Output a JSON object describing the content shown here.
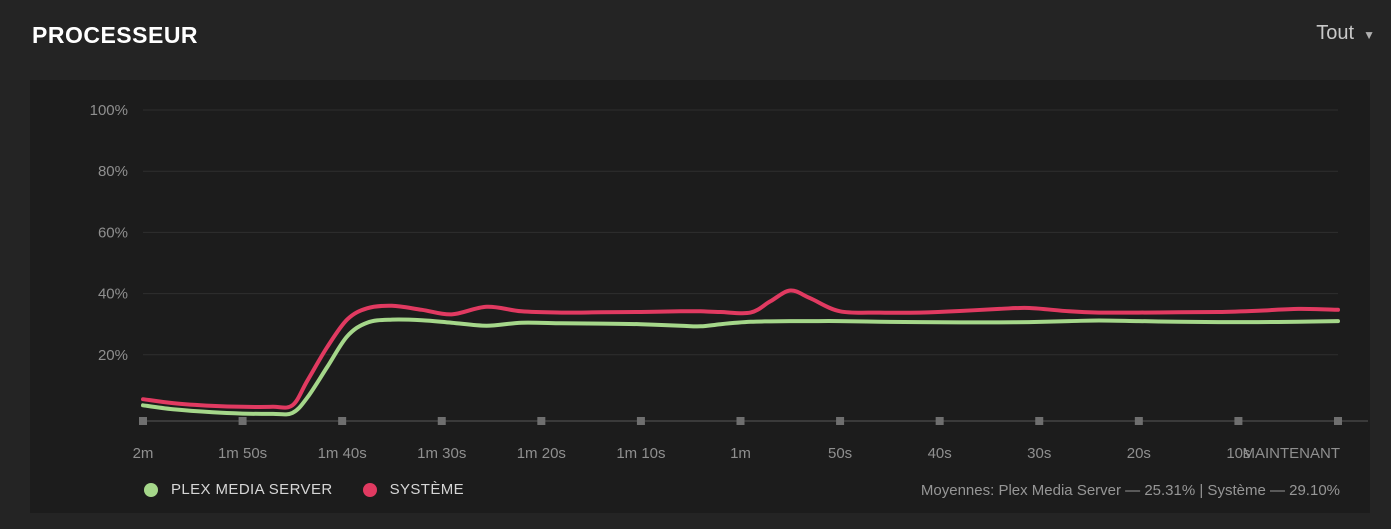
{
  "header": {
    "title": "PROCESSEUR",
    "filter_label": "Tout",
    "dropdown_icon": "▼"
  },
  "colors": {
    "page_bg": "#242424",
    "panel_bg": "#1c1c1c",
    "grid_line": "#2e2e2e",
    "baseline": "#3a3a3a",
    "tick_mark": "#6f6f6f",
    "axis_text": "#8f8f8f",
    "plex_green": "#a5d78a",
    "system_pink": "#e13a61",
    "legend_text": "#d6d6d6",
    "title_text": "#ffffff"
  },
  "chart_data": {
    "type": "line",
    "title": "PROCESSEUR",
    "xlabel": "",
    "ylabel": "",
    "ylim": [
      0,
      100
    ],
    "grid": true,
    "legend_position": "bottom-left",
    "y_tick_values": [
      20,
      40,
      60,
      80,
      100
    ],
    "y_tick_labels": [
      "20%",
      "40%",
      "60%",
      "80%",
      "100%"
    ],
    "x_tick_seconds_ago": [
      120,
      110,
      100,
      90,
      80,
      70,
      60,
      50,
      40,
      30,
      20,
      10,
      0
    ],
    "x_tick_labels": [
      "2m",
      "1m 50s",
      "1m 40s",
      "1m 30s",
      "1m 20s",
      "1m 10s",
      "1m",
      "50s",
      "40s",
      "30s",
      "20s",
      "10s",
      "MAINTENANT"
    ],
    "x_seconds_ago_range": [
      120,
      0
    ],
    "t_seconds_ago": [
      120,
      117,
      113,
      110,
      107,
      105,
      103.5,
      101.5,
      99.5,
      97.5,
      95,
      92,
      89,
      85.5,
      82,
      78,
      74,
      70,
      66,
      64,
      62,
      59,
      57,
      55,
      53,
      50,
      46,
      42,
      38,
      34,
      31,
      27,
      24,
      20,
      16,
      12,
      8,
      4,
      0
    ],
    "series": [
      {
        "name": "PLEX MEDIA SERVER",
        "color": "#a5d78a",
        "values": [
          3.5,
          2.2,
          1.2,
          0.8,
          0.7,
          1.0,
          6.0,
          16.0,
          26.0,
          30.5,
          31.5,
          31.3,
          30.5,
          29.5,
          30.5,
          30.3,
          30.2,
          30.0,
          29.5,
          29.3,
          30.0,
          30.8,
          30.9,
          31.0,
          31.0,
          31.0,
          30.8,
          30.7,
          30.6,
          30.6,
          30.7,
          31.0,
          31.2,
          31.0,
          30.8,
          30.7,
          30.7,
          30.8,
          31.0
        ]
      },
      {
        "name": "SYSTÈME",
        "color": "#e13a61",
        "values": [
          5.5,
          4.2,
          3.3,
          3.0,
          3.0,
          3.5,
          11.5,
          22.5,
          31.5,
          35.2,
          36.0,
          34.7,
          33.2,
          35.7,
          34.2,
          33.8,
          33.9,
          34.0,
          34.2,
          34.2,
          34.0,
          33.8,
          37.5,
          41.0,
          38.5,
          34.2,
          33.8,
          33.8,
          34.3,
          35.0,
          35.3,
          34.2,
          33.8,
          33.8,
          33.9,
          34.0,
          34.4,
          35.0,
          34.7
        ]
      }
    ]
  },
  "legend": {
    "items": [
      {
        "label": "PLEX MEDIA SERVER",
        "color": "#a5d78a"
      },
      {
        "label": "SYSTÈME",
        "color": "#e13a61"
      }
    ]
  },
  "footer": {
    "averages_text": "Moyennes: Plex Media Server — 25.31% | Système — 29.10%",
    "averages": {
      "plex_media_server": "25.31%",
      "systeme": "29.10%"
    }
  }
}
